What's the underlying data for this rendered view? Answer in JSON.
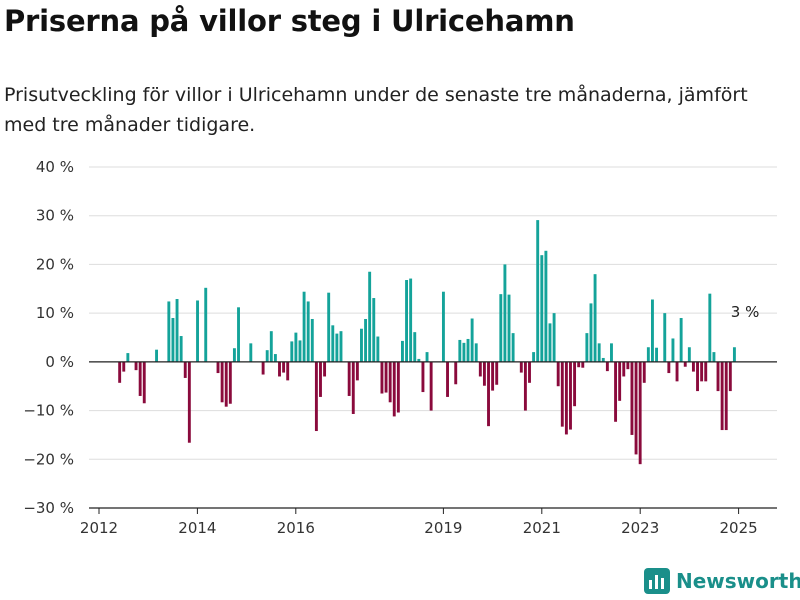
{
  "header": {
    "title": "Priserna på villor steg i Ulricehamn",
    "subtitle": "Prisutveckling för villor i Ulricehamn under de senaste tre månaderna, jämfört med tre månader tidigare."
  },
  "brand": {
    "name": "Newsworthy",
    "color": "#1a8f8a",
    "icon": "bar-chart-logo-icon"
  },
  "colors": {
    "positive": "#14a39a",
    "negative": "#8a0a3c",
    "grid": "#dddddd"
  },
  "chart_data": {
    "type": "bar",
    "title": "Priserna på villor steg i Ulricehamn",
    "ylim": [
      -30,
      40
    ],
    "yticks": [
      40,
      30,
      20,
      10,
      0,
      -10,
      -20,
      -30
    ],
    "ytick_labels": [
      "40 %",
      "30 %",
      "20 %",
      "10 %",
      "0 %",
      "−10 %",
      "−20 %",
      "−30 %"
    ],
    "xticks": [
      2012,
      2014,
      2016,
      2019,
      2021,
      2023,
      2025
    ],
    "xtick_labels": [
      "2012",
      "2014",
      "2016",
      "2019",
      "2021",
      "2023",
      "2025"
    ],
    "annotation": {
      "text": "3 %",
      "year": 2025.05,
      "value": 3
    },
    "x_start": 2012.42,
    "x_step": 0.0833,
    "values": [
      -4.3,
      -2,
      1.8,
      0,
      -1.7,
      -7,
      -8.5,
      0,
      0,
      2.5,
      0,
      0,
      12.4,
      9,
      12.9,
      5.3,
      -3.3,
      -16.6,
      0,
      12.6,
      0,
      15.2,
      0,
      0,
      -2.3,
      -8.3,
      -9.2,
      -8.6,
      2.8,
      11.2,
      0,
      0,
      3.8,
      0,
      0,
      -2.6,
      2.4,
      6.3,
      1.6,
      -3,
      -2.2,
      -3.8,
      4.2,
      6,
      4.4,
      14.4,
      12.4,
      8.8,
      -14.2,
      -7.2,
      -3,
      14.2,
      7.5,
      5.8,
      6.3,
      0,
      -7,
      -10.7,
      -3.8,
      6.8,
      8.8,
      18.5,
      13.1,
      5.2,
      -6.5,
      -6.3,
      -8.3,
      -11.2,
      -10.4,
      4.3,
      16.8,
      17.1,
      6.1,
      0.6,
      -6.2,
      2,
      -10,
      0,
      0,
      14.4,
      -7.2,
      0,
      -4.6,
      4.5,
      3.9,
      4.7,
      8.9,
      3.8,
      -3,
      -4.9,
      -13.2,
      -5.9,
      -4.7,
      13.9,
      20,
      13.8,
      5.9,
      0,
      -2.2,
      -10,
      -4.3,
      2,
      29.1,
      21.9,
      22.8,
      7.9,
      10,
      -5,
      -13.3,
      -14.9,
      -13.9,
      -9.1,
      -1.1,
      -1.2,
      5.9,
      12,
      18,
      3.8,
      0.8,
      -1.9,
      3.8,
      -12.3,
      -8,
      -3,
      -1.5,
      -15,
      -19,
      -21,
      -4.3,
      3,
      12.8,
      2.9,
      0,
      10,
      -2.3,
      4.8,
      -4,
      9,
      -1,
      3,
      -2,
      -6,
      -4,
      -4,
      14,
      2,
      -6,
      -14,
      -14,
      -6,
      3
    ]
  }
}
